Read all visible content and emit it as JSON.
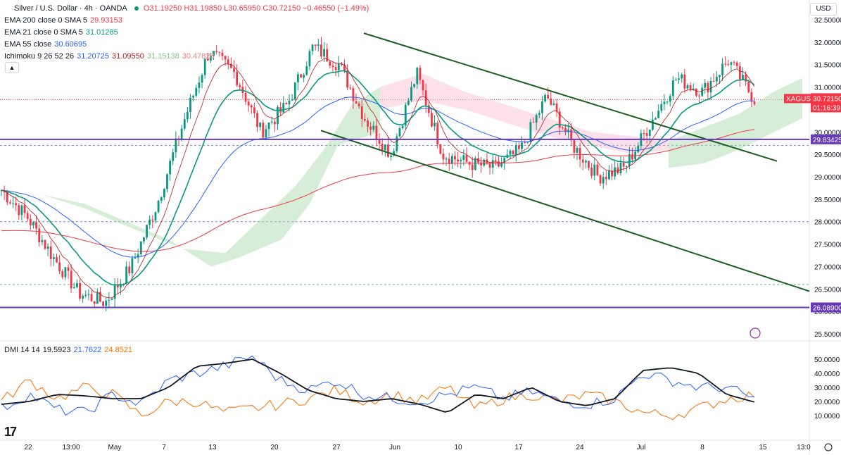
{
  "header": {
    "symbol_title": "Silver / U.S. Dollar · 4h · OANDA",
    "ohlc": "O31.19250 H31.19850 L30.65950 C30.72150 −0.46550 (−1.49%)",
    "currency_button": "USD",
    "collapse_icon": "chevron-up-icon"
  },
  "indicators": {
    "ema200": {
      "label": "EMA 200 close 0 SMA 5",
      "value": "29.93153",
      "color": "#f23645"
    },
    "ema21": {
      "label": "EMA 21 close 0 SMA 5",
      "value": "31.01285",
      "color": "#089981"
    },
    "ema55": {
      "label": "EMA 55 close",
      "value": "30.60695",
      "color": "#2962ff"
    },
    "ichimoku": {
      "label": "Ichimoku 9 26 52 26",
      "v1": "31.20725",
      "v2": "31.09550",
      "v3": "31.15138",
      "v4": "30.47828",
      "c1": "#2962ff",
      "c2": "#b71c1c",
      "c3": "#81c784",
      "c4": "#f77c80"
    },
    "dmi": {
      "label": "DMI 14 14",
      "adx": "19.5923",
      "plus": "21.7622",
      "minus": "24.8521",
      "c_adx": "#131722",
      "c_plus": "#2962ff",
      "c_minus": "#ff6d00"
    }
  },
  "price_axis": {
    "ticks": [
      "32.50000",
      "32.00000",
      "31.50000",
      "31.00000",
      "30.50000",
      "30.00000",
      "29.50000",
      "29.00000",
      "28.50000",
      "28.00000",
      "27.50000",
      "27.00000",
      "26.50000",
      "26.00000",
      "25.50000"
    ],
    "symbol_tag": "XAGUSD",
    "price_tag": "30.72150",
    "countdown_tag": "01:16:39",
    "level_upper_tag": "29.83425",
    "level_lower_tag": "26.08900"
  },
  "dmi_axis": {
    "ticks": [
      "50.0000",
      "40.0000",
      "30.0000",
      "20.0000",
      "10.0000"
    ]
  },
  "time_axis": {
    "ticks": [
      "22",
      "13:00",
      "May",
      "7",
      "13",
      "20",
      "27",
      "Jun",
      "10",
      "17",
      "24",
      "Jul",
      "8",
      "15",
      "13:0"
    ]
  },
  "colors": {
    "bull": "#089981",
    "bear": "#f23645",
    "channel": "#1b5e20",
    "hline": "#673ab7",
    "cloud_bull": "#a5d6a7",
    "cloud_bear": "#f8bbd0"
  },
  "chart_data": {
    "type": "candlestick",
    "y_range": [
      25.5,
      32.5
    ],
    "horizontal_levels": [
      29.83425,
      26.089,
      28.0,
      29.7,
      26.6
    ],
    "channel_upper": [
      [
        0,
        32.2
      ],
      [
        1,
        29.35
      ]
    ],
    "channel_lower": [
      [
        0,
        30.03
      ],
      [
        1,
        26.45
      ]
    ],
    "key_closes": [
      28.7,
      28.1,
      27.2,
      26.4,
      26.2,
      27.0,
      28.4,
      30.2,
      31.8,
      31.3,
      30.0,
      30.6,
      31.9,
      31.5,
      30.3,
      29.5,
      31.3,
      29.5,
      29.3,
      29.2,
      29.6,
      30.8,
      29.7,
      29.0,
      29.2,
      30.2,
      31.2,
      30.9,
      31.6,
      30.72
    ],
    "dmi": {
      "adx": [
        18,
        20,
        25,
        24,
        22,
        22,
        30,
        45,
        47,
        50,
        40,
        28,
        22,
        20,
        22,
        18,
        12,
        25,
        22,
        30,
        20,
        17,
        22,
        42,
        44,
        40,
        25,
        19.59
      ],
      "plus": [
        15,
        25,
        14,
        12,
        25,
        18,
        35,
        40,
        45,
        52,
        35,
        28,
        35,
        25,
        22,
        20,
        25,
        30,
        22,
        27,
        20,
        18,
        22,
        40,
        35,
        30,
        30,
        21.76
      ],
      "minus": [
        20,
        35,
        22,
        30,
        25,
        10,
        20,
        20,
        12,
        15,
        18,
        22,
        28,
        20,
        25,
        20,
        30,
        15,
        22,
        25,
        20,
        25,
        20,
        12,
        10,
        15,
        22,
        24.85
      ]
    }
  }
}
